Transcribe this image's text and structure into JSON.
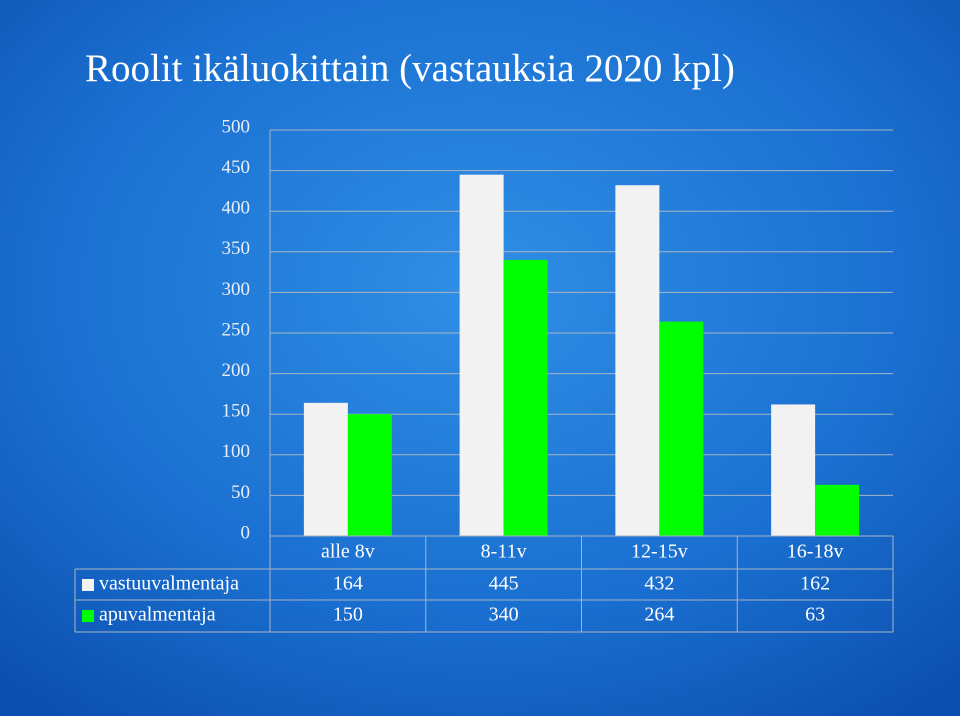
{
  "chart_data": {
    "type": "bar",
    "title": "Roolit ikäluokittain (vastauksia 2020 kpl)",
    "categories": [
      "alle 8v",
      "8-11v",
      "12-15v",
      "16-18v"
    ],
    "series": [
      {
        "name": "vastuuvalmentaja",
        "color": "#f2f2f2",
        "values": [
          164,
          445,
          432,
          162
        ]
      },
      {
        "name": "apuvalmentaja",
        "color": "#00ff00",
        "values": [
          150,
          340,
          264,
          63
        ]
      }
    ],
    "ylim": [
      0,
      500
    ],
    "yticks": [
      0,
      50,
      100,
      150,
      200,
      250,
      300,
      350,
      400,
      450,
      500
    ],
    "grid": true
  }
}
